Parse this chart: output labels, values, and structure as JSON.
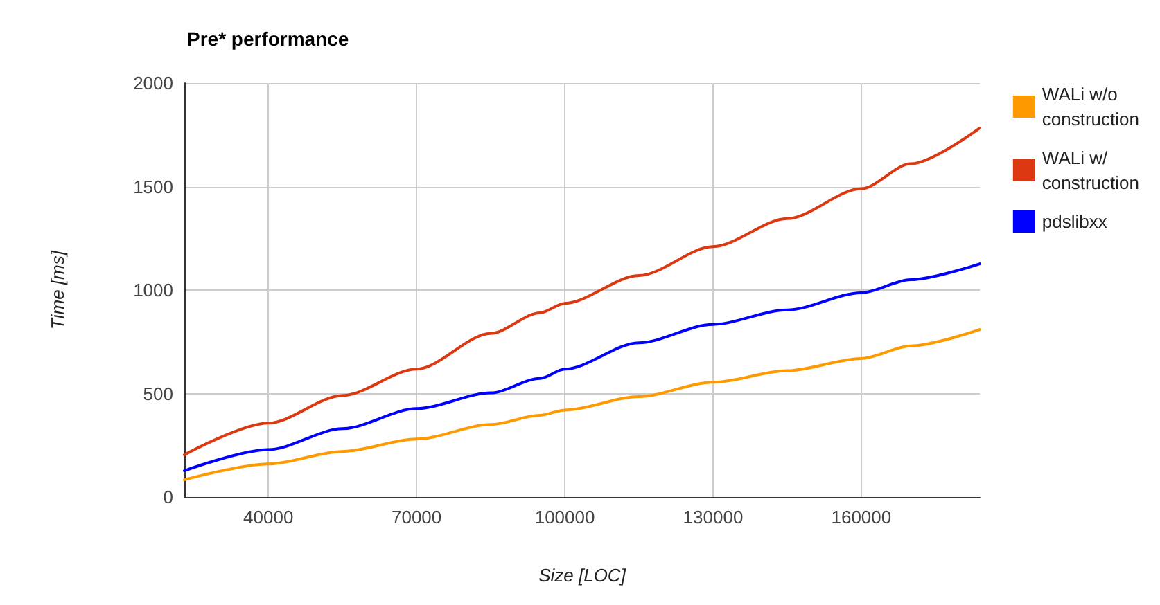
{
  "chart_data": {
    "type": "line",
    "title": "Pre* performance",
    "xlabel": "Size [LOC]",
    "ylabel": "Time [ms]",
    "x": [
      23000,
      40000,
      55000,
      70000,
      85000,
      95000,
      100000,
      115000,
      130000,
      145000,
      160000,
      170000,
      184000
    ],
    "series": [
      {
        "name": "WALi w/o construction",
        "color": "#ff9900",
        "values": [
          83,
          160,
          220,
          280,
          350,
          395,
          420,
          485,
          554,
          610,
          669,
          730,
          809
        ]
      },
      {
        "name": "WALi w/ construction",
        "color": "#dc3912",
        "values": [
          204,
          357,
          490,
          618,
          790,
          890,
          936,
          1070,
          1210,
          1345,
          1490,
          1610,
          1783
        ]
      },
      {
        "name": "pdslibxx",
        "color": "#0000ff",
        "values": [
          127,
          229,
          330,
          427,
          503,
          573,
          618,
          745,
          834,
          904,
          987,
          1050,
          1127
        ]
      }
    ],
    "xlim": [
      23000,
      184000
    ],
    "xticks": [
      40000,
      70000,
      100000,
      130000,
      160000
    ],
    "ylim": [
      0,
      2000
    ],
    "yticks": [
      0,
      500,
      1000,
      1500,
      2000
    ],
    "grid": true,
    "legend": "top right",
    "marker": "none",
    "line_style": "solid"
  }
}
